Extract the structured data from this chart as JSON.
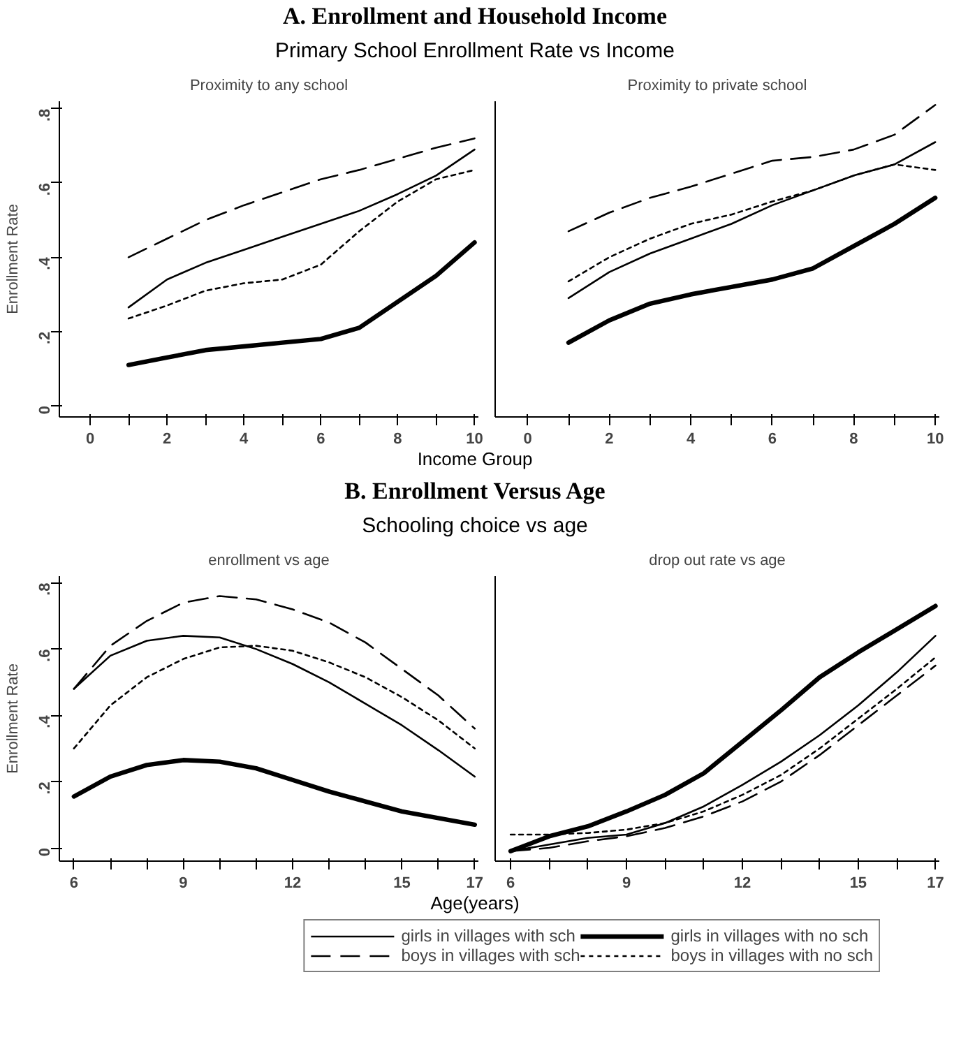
{
  "chart_data": [
    {
      "type": "line",
      "annotations": [
        "A. Enrollment and Household Income",
        "Primary School Enrollment Rate vs Income"
      ],
      "title": "Proximity to any school",
      "xlabel": "Income Group",
      "ylabel": "Enrollment Rate",
      "x": [
        1,
        2,
        3,
        4,
        5,
        6,
        7,
        8,
        9,
        10
      ],
      "xlim": [
        -0.8,
        10.1
      ],
      "ylim": [
        -0.03,
        0.82
      ],
      "xticks": [
        0,
        {
          "value": 1,
          "label": null
        },
        2,
        {
          "value": 3,
          "label": null
        },
        4,
        {
          "value": 5,
          "label": null
        },
        6,
        {
          "value": 7,
          "label": null
        },
        8,
        {
          "value": 9,
          "label": null
        },
        10
      ],
      "yticks": [
        0,
        {
          "value": 0.2,
          "label": ".2"
        },
        {
          "value": 0.4,
          "label": ".4"
        },
        {
          "value": 0.6,
          "label": ".6"
        },
        {
          "value": 0.8,
          "label": ".8"
        }
      ],
      "series": [
        {
          "color": "#000000",
          "line_style": "solid",
          "values": [
            0.265,
            0.34,
            0.385,
            0.42,
            0.455,
            0.49,
            0.525,
            0.57,
            0.62,
            0.69
          ]
        },
        {
          "color": "#000000",
          "line_style": "solid",
          "values": [
            0.11,
            0.13,
            0.15,
            0.16,
            0.17,
            0.18,
            0.21,
            0.28,
            0.35,
            0.44
          ]
        },
        {
          "color": "#000000",
          "line_style": "dashed",
          "values": [
            0.4,
            0.45,
            0.5,
            0.54,
            0.575,
            0.61,
            0.635,
            0.665,
            0.695,
            0.72
          ]
        },
        {
          "color": "#000000",
          "line_style": "dotted",
          "values": [
            0.235,
            0.27,
            0.31,
            0.33,
            0.34,
            0.38,
            0.47,
            0.55,
            0.61,
            0.635
          ]
        }
      ]
    },
    {
      "type": "line",
      "title": "Proximity to private school",
      "x": [
        1,
        2,
        3,
        4,
        5,
        6,
        7,
        8,
        9,
        10
      ],
      "xlim": [
        -0.8,
        10.1
      ],
      "ylim": [
        -0.03,
        0.82
      ],
      "tick_labels": "x",
      "xticks": [
        0,
        {
          "value": 1,
          "label": null
        },
        2,
        {
          "value": 3,
          "label": null
        },
        4,
        {
          "value": 5,
          "label": null
        },
        6,
        {
          "value": 7,
          "label": null
        },
        8,
        {
          "value": 9,
          "label": null
        },
        10
      ],
      "series": [
        {
          "color": "#000000",
          "line_style": "solid",
          "values": [
            0.29,
            0.36,
            0.41,
            0.45,
            0.49,
            0.54,
            0.58,
            0.62,
            0.65,
            0.71
          ]
        },
        {
          "color": "#000000",
          "line_style": "solid",
          "values": [
            0.17,
            0.23,
            0.275,
            0.3,
            0.32,
            0.34,
            0.37,
            0.43,
            0.49,
            0.56
          ]
        },
        {
          "color": "#000000",
          "line_style": "dashed",
          "values": [
            0.47,
            0.52,
            0.56,
            0.59,
            0.625,
            0.66,
            0.67,
            0.69,
            0.73,
            0.81
          ]
        },
        {
          "color": "#000000",
          "line_style": "dotted",
          "values": [
            0.335,
            0.4,
            0.45,
            0.49,
            0.515,
            0.55,
            0.58,
            0.62,
            0.65,
            0.635
          ]
        }
      ]
    },
    {
      "type": "line",
      "annotations": [
        "B. Enrollment Versus Age",
        "Schooling choice vs age"
      ],
      "title": "enrollment vs age",
      "xlabel": "Age(years)",
      "ylabel": "Enrollment Rate",
      "x": [
        6,
        7,
        8,
        9,
        10,
        11,
        12,
        13,
        14,
        15,
        16,
        17
      ],
      "xlim": [
        5.6,
        17.1
      ],
      "ylim": [
        -0.04,
        0.82
      ],
      "xticks": [
        6,
        {
          "value": 7,
          "label": null
        },
        {
          "value": 8,
          "label": null
        },
        9,
        {
          "value": 10,
          "label": null
        },
        {
          "value": 11,
          "label": null
        },
        12,
        {
          "value": 13,
          "label": null
        },
        {
          "value": 14,
          "label": null
        },
        15,
        {
          "value": 16,
          "label": null
        },
        17
      ],
      "yticks": [
        0,
        {
          "value": 0.2,
          "label": ".2"
        },
        {
          "value": 0.4,
          "label": ".4"
        },
        {
          "value": 0.6,
          "label": ".6"
        },
        {
          "value": 0.8,
          "label": ".8"
        }
      ],
      "series": [
        {
          "color": "#000000",
          "line_style": "solid",
          "values": [
            0.48,
            0.58,
            0.625,
            0.64,
            0.635,
            0.6,
            0.555,
            0.5,
            0.435,
            0.37,
            0.295,
            0.215
          ]
        },
        {
          "color": "#000000",
          "line_style": "solid",
          "values": [
            0.155,
            0.215,
            0.25,
            0.265,
            0.26,
            0.24,
            0.205,
            0.17,
            0.14,
            0.11,
            0.09,
            0.07
          ]
        },
        {
          "color": "#000000",
          "line_style": "dashed",
          "values": [
            0.48,
            0.61,
            0.685,
            0.74,
            0.76,
            0.75,
            0.72,
            0.68,
            0.62,
            0.54,
            0.46,
            0.36
          ]
        },
        {
          "color": "#000000",
          "line_style": "dotted",
          "values": [
            0.3,
            0.43,
            0.515,
            0.57,
            0.605,
            0.61,
            0.595,
            0.56,
            0.515,
            0.455,
            0.385,
            0.3
          ]
        }
      ]
    },
    {
      "type": "line",
      "title": "drop out rate vs age",
      "x": [
        6,
        7,
        8,
        9,
        10,
        11,
        12,
        13,
        14,
        15,
        16,
        17
      ],
      "xlim": [
        5.6,
        17.1
      ],
      "ylim": [
        -0.04,
        0.82
      ],
      "tick_labels": "x",
      "legend": "bottom",
      "xticks": [
        6,
        {
          "value": 7,
          "label": null
        },
        {
          "value": 8,
          "label": null
        },
        9,
        {
          "value": 10,
          "label": null
        },
        {
          "value": 11,
          "label": null
        },
        12,
        {
          "value": 13,
          "label": null
        },
        {
          "value": 14,
          "label": null
        },
        15,
        {
          "value": 16,
          "label": null
        },
        17
      ],
      "series": [
        {
          "name": "girls in villages with sch",
          "color": "#000000",
          "line_style": "solid",
          "values": [
            -0.01,
            0.01,
            0.03,
            0.04,
            0.075,
            0.125,
            0.19,
            0.26,
            0.34,
            0.43,
            0.53,
            0.64
          ]
        },
        {
          "name": "girls in villages with no sch",
          "color": "#000000",
          "line_style": "solid",
          "values": [
            -0.01,
            0.035,
            0.065,
            0.11,
            0.16,
            0.225,
            0.32,
            0.415,
            0.515,
            0.59,
            0.66,
            0.73
          ]
        },
        {
          "name": "boys in villages with sch",
          "color": "#000000",
          "line_style": "dashed",
          "values": [
            -0.01,
            0.0,
            0.02,
            0.035,
            0.06,
            0.095,
            0.14,
            0.2,
            0.28,
            0.37,
            0.46,
            0.55
          ]
        },
        {
          "name": "boys in villages with no sch",
          "color": "#000000",
          "line_style": "dotted",
          "values": [
            0.04,
            0.04,
            0.045,
            0.055,
            0.075,
            0.11,
            0.16,
            0.22,
            0.3,
            0.39,
            0.48,
            0.575
          ]
        }
      ]
    }
  ]
}
